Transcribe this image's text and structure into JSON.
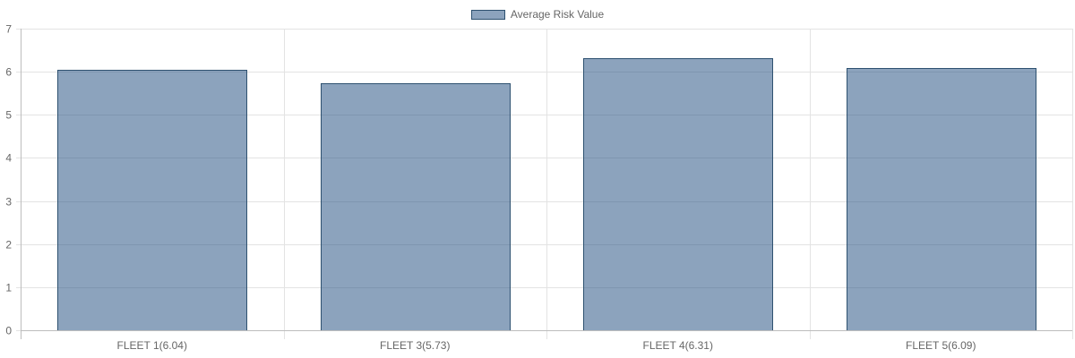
{
  "legend": {
    "label": "Average Risk Value"
  },
  "colors": {
    "bar_fill": "rgba(46,88,134,0.55)",
    "bar_stroke": "#2e5170",
    "grid": "#e3e3e3",
    "axis": "#bdbdbd",
    "tick_text": "#666666"
  },
  "chart_data": {
    "type": "bar",
    "categories": [
      "FLEET 1(6.04)",
      "FLEET 3(5.73)",
      "FLEET 4(6.31)",
      "FLEET 5(6.09)"
    ],
    "series": [
      {
        "name": "Average Risk Value",
        "values": [
          6.04,
          5.73,
          6.31,
          6.09
        ]
      }
    ],
    "ylim": [
      0,
      7
    ],
    "yticks": [
      0,
      1,
      2,
      3,
      4,
      5,
      6,
      7
    ],
    "grid": true,
    "legend_position": "top-center"
  }
}
